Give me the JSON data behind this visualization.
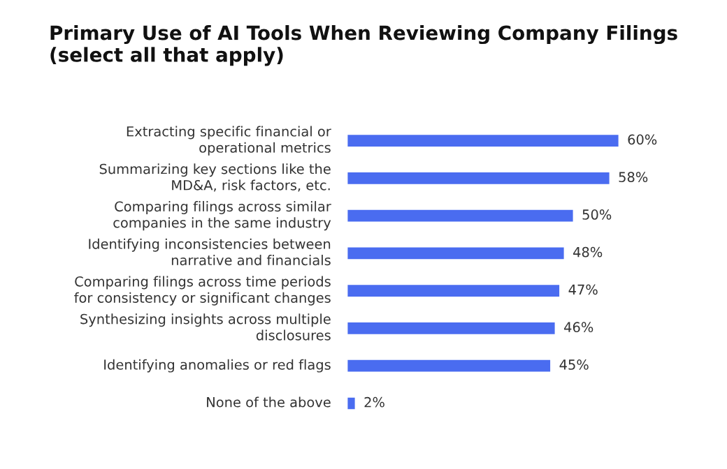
{
  "chart_data": {
    "type": "bar",
    "orientation": "horizontal",
    "title": "Primary Use of AI Tools When Reviewing Company Filings (select all that apply)",
    "categories": [
      "Extracting specific financial or operational metrics",
      "Summarizing key sections like the MD&A, risk factors, etc.",
      "Comparing filings across similar companies in the same industry",
      "Identifying inconsistencies between narrative and financials",
      "Comparing filings across time periods for consistency or significant changes",
      "Synthesizing insights across multiple disclosures",
      "Identifying anomalies or red flags",
      "None of the above"
    ],
    "values": [
      60,
      58,
      50,
      48,
      47,
      46,
      45,
      2
    ],
    "color": "#4a6cf0",
    "value_labels": [
      "60%",
      "58%",
      "50%",
      "48%",
      "47%",
      "46%",
      "45%",
      "2%"
    ],
    "grid": false
  }
}
